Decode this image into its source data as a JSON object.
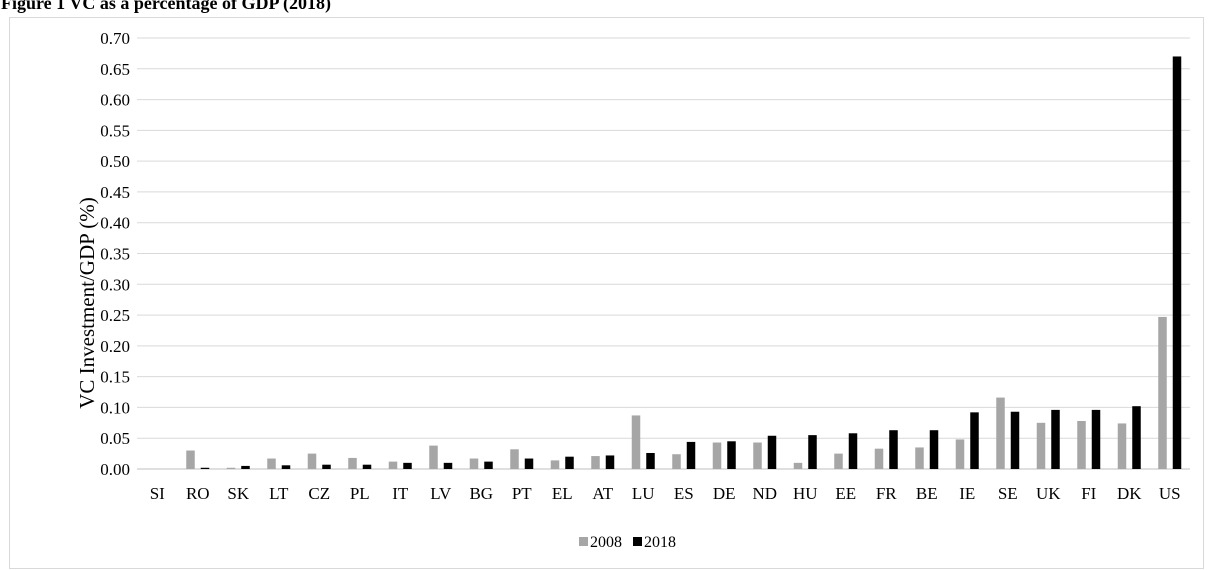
{
  "chart_data": {
    "type": "bar",
    "title": "Figure 1 VC as a percentage of GDP (2018)",
    "ylabel": "VC Investment/GDP (%)",
    "xlabel": "",
    "ylim": [
      0,
      0.7
    ],
    "ytick_step": 0.05,
    "ytick_decimals": 2,
    "grid": true,
    "legend": "bottom-center",
    "categories": [
      "SI",
      "RO",
      "SK",
      "LT",
      "CZ",
      "PL",
      "IT",
      "LV",
      "BG",
      "PT",
      "EL",
      "AT",
      "LU",
      "ES",
      "DE",
      "ND",
      "HU",
      "EE",
      "FR",
      "BE",
      "IE",
      "SE",
      "UK",
      "FI",
      "DK",
      "US"
    ],
    "series": [
      {
        "name": "2008",
        "color": "#a6a6a6",
        "values": [
          0.0,
          0.03,
          0.002,
          0.017,
          0.025,
          0.018,
          0.012,
          0.038,
          0.017,
          0.032,
          0.014,
          0.021,
          0.087,
          0.024,
          0.043,
          0.043,
          0.01,
          0.025,
          0.033,
          0.035,
          0.048,
          0.116,
          0.075,
          0.078,
          0.074,
          0.247
        ]
      },
      {
        "name": "2018",
        "color": "#000000",
        "values": [
          0.0,
          0.002,
          0.005,
          0.006,
          0.007,
          0.007,
          0.01,
          0.01,
          0.012,
          0.017,
          0.02,
          0.022,
          0.026,
          0.044,
          0.045,
          0.054,
          0.055,
          0.058,
          0.063,
          0.063,
          0.092,
          0.093,
          0.096,
          0.096,
          0.102,
          0.67
        ]
      }
    ]
  }
}
